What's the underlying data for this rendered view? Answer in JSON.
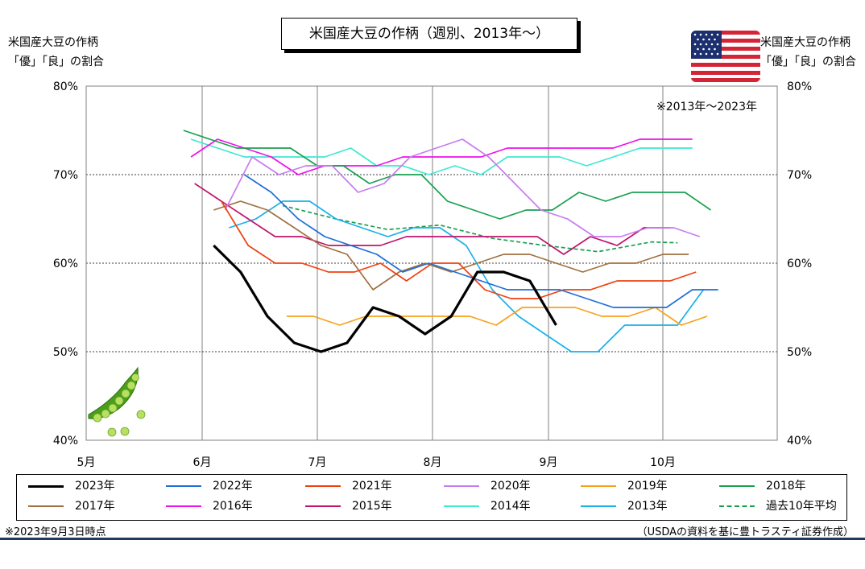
{
  "chart_data": {
    "type": "line",
    "title": "米国産大豆の作柄（週別、2013年～）",
    "ylabel_left": [
      "米国産大豆の作柄",
      "「優」「良」の割合"
    ],
    "ylabel_right": [
      "米国産大豆の作柄",
      "「優」「良」の割合"
    ],
    "y_unit": "%",
    "ylim": [
      40,
      80
    ],
    "y_ticks": [
      "40%",
      "50%",
      "60%",
      "70%",
      "80%"
    ],
    "x_ticks": [
      "5月",
      "6月",
      "7月",
      "8月",
      "9月",
      "10月"
    ],
    "xlim": [
      "5月1日",
      "11月15日"
    ],
    "grid": true,
    "legend_position": "bottom",
    "annotation": "※2013年～2023年",
    "series": [
      {
        "name": "2023年",
        "color": "#000000",
        "width": 3.2,
        "dash": false,
        "x": [
          "6/4",
          "6/11",
          "6/18",
          "6/25",
          "7/2",
          "7/9",
          "7/16",
          "7/23",
          "7/30",
          "8/6",
          "8/13",
          "8/20",
          "8/27",
          "9/3"
        ],
        "values": [
          62,
          59,
          54,
          51,
          50,
          51,
          55,
          54,
          52,
          54,
          59,
          59,
          58,
          53
        ]
      },
      {
        "name": "2022年",
        "color": "#1f6fd6",
        "width": 1.7,
        "dash": false,
        "x": [
          "6/12",
          "6/19",
          "6/26",
          "7/3",
          "7/10",
          "7/17",
          "7/24",
          "7/31",
          "8/7",
          "8/14",
          "8/21",
          "8/28",
          "9/4",
          "9/11",
          "9/18",
          "9/25",
          "10/2",
          "10/9",
          "10/16"
        ],
        "values": [
          70,
          68,
          65,
          63,
          62,
          61,
          59,
          60,
          59,
          58,
          57,
          57,
          57,
          56,
          55,
          55,
          55,
          57,
          57
        ]
      },
      {
        "name": "2021年",
        "color": "#f04010",
        "width": 1.7,
        "dash": false,
        "x": [
          "6/6",
          "6/13",
          "6/20",
          "6/27",
          "7/4",
          "7/11",
          "7/18",
          "7/25",
          "8/1",
          "8/8",
          "8/15",
          "8/22",
          "8/29",
          "9/5",
          "9/12",
          "9/19",
          "9/26",
          "10/3",
          "10/10"
        ],
        "values": [
          67,
          62,
          60,
          60,
          59,
          59,
          60,
          58,
          60,
          60,
          57,
          56,
          56,
          57,
          57,
          58,
          58,
          58,
          59
        ]
      },
      {
        "name": "2020年",
        "color": "#c77cf0",
        "width": 1.7,
        "dash": false,
        "x": [
          "6/7",
          "6/14",
          "6/21",
          "6/28",
          "7/5",
          "7/12",
          "7/19",
          "7/26",
          "8/2",
          "8/9",
          "8/16",
          "8/23",
          "8/30",
          "9/6",
          "9/13",
          "9/20",
          "9/27",
          "10/4",
          "10/11"
        ],
        "values": [
          66,
          72,
          70,
          71,
          71,
          68,
          69,
          72,
          73,
          74,
          72,
          69,
          66,
          65,
          63,
          63,
          64,
          64,
          63
        ]
      },
      {
        "name": "2019年",
        "color": "#f7a21b",
        "width": 1.7,
        "dash": false,
        "x": [
          "6/23",
          "6/30",
          "7/7",
          "7/14",
          "7/21",
          "7/28",
          "8/4",
          "8/11",
          "8/18",
          "8/25",
          "9/1",
          "9/8",
          "9/15",
          "9/22",
          "9/29",
          "10/6",
          "10/13"
        ],
        "values": [
          54,
          54,
          53,
          54,
          54,
          54,
          54,
          54,
          53,
          55,
          55,
          55,
          54,
          54,
          55,
          53,
          54
        ]
      },
      {
        "name": "2018年",
        "color": "#1aa050",
        "width": 1.7,
        "dash": false,
        "x": [
          "5/27",
          "6/3",
          "6/10",
          "6/17",
          "6/24",
          "7/1",
          "7/8",
          "7/15",
          "7/22",
          "7/29",
          "8/5",
          "8/12",
          "8/19",
          "8/26",
          "9/2",
          "9/9",
          "9/16",
          "9/23",
          "9/30",
          "10/7",
          "10/14"
        ],
        "values": [
          75,
          74,
          73,
          73,
          73,
          71,
          71,
          69,
          70,
          70,
          67,
          66,
          65,
          66,
          66,
          68,
          67,
          68,
          68,
          68,
          66
        ]
      },
      {
        "name": "2017年",
        "color": "#a07040",
        "width": 1.7,
        "dash": false,
        "x": [
          "6/4",
          "6/11",
          "6/18",
          "6/25",
          "7/2",
          "7/9",
          "7/16",
          "7/23",
          "7/30",
          "8/6",
          "8/13",
          "8/20",
          "8/27",
          "9/3",
          "9/10",
          "9/17",
          "9/24",
          "10/1",
          "10/8"
        ],
        "values": [
          66,
          67,
          66,
          64,
          62,
          61,
          57,
          59,
          60,
          59,
          60,
          61,
          61,
          60,
          59,
          60,
          60,
          61,
          61
        ]
      },
      {
        "name": "2016年",
        "color": "#ee10ee",
        "width": 1.7,
        "dash": false,
        "x": [
          "5/29",
          "6/5",
          "6/12",
          "6/19",
          "6/26",
          "7/3",
          "7/10",
          "7/17",
          "7/24",
          "7/31",
          "8/7",
          "8/14",
          "8/21",
          "8/28",
          "9/4",
          "9/11",
          "9/18",
          "9/25",
          "10/2",
          "10/9"
        ],
        "values": [
          72,
          74,
          73,
          72,
          70,
          71,
          71,
          71,
          72,
          72,
          72,
          72,
          73,
          73,
          73,
          73,
          73,
          74,
          74,
          74
        ]
      },
      {
        "name": "2015年",
        "color": "#c0146e",
        "width": 1.7,
        "dash": false,
        "x": [
          "5/30",
          "6/6",
          "6/13",
          "6/20",
          "6/27",
          "7/4",
          "7/11",
          "7/18",
          "7/25",
          "8/1",
          "8/8",
          "8/15",
          "8/22",
          "8/29",
          "9/5",
          "9/12",
          "9/19",
          "9/26",
          "10/3"
        ],
        "values": [
          69,
          67,
          65,
          63,
          63,
          62,
          62,
          62,
          63,
          63,
          63,
          63,
          63,
          63,
          61,
          63,
          62,
          64,
          64
        ]
      },
      {
        "name": "2014年",
        "color": "#40e8d0",
        "width": 1.7,
        "dash": false,
        "x": [
          "5/29",
          "6/5",
          "6/12",
          "6/19",
          "6/26",
          "7/3",
          "7/10",
          "7/17",
          "7/24",
          "7/31",
          "8/7",
          "8/14",
          "8/21",
          "8/28",
          "9/4",
          "9/11",
          "9/18",
          "9/25",
          "10/2",
          "10/9"
        ],
        "values": [
          74,
          73,
          72,
          72,
          72,
          72,
          73,
          71,
          71,
          70,
          71,
          70,
          72,
          72,
          72,
          71,
          72,
          73,
          73,
          73
        ]
      },
      {
        "name": "2013年",
        "color": "#1ab0e8",
        "width": 1.7,
        "dash": false,
        "x": [
          "6/8",
          "6/15",
          "6/22",
          "6/29",
          "7/6",
          "7/13",
          "7/20",
          "7/27",
          "8/3",
          "8/10",
          "8/17",
          "8/24",
          "8/31",
          "9/7",
          "9/14",
          "9/21",
          "9/28",
          "10/5",
          "10/12"
        ],
        "values": [
          64,
          65,
          67,
          67,
          65,
          64,
          63,
          64,
          64,
          62,
          57,
          54,
          52,
          50,
          50,
          53,
          53,
          53,
          57
        ]
      },
      {
        "name": "過去10年平均",
        "color": "#1aa050",
        "width": 1.7,
        "dash": true,
        "x": [
          "6/22",
          "7/6",
          "7/20",
          "8/3",
          "8/17",
          "8/31",
          "9/14",
          "9/28",
          "10/5"
        ],
        "values": [
          66.5,
          65,
          63.8,
          64.3,
          62.8,
          62.0,
          61.3,
          62.4,
          62.3
        ]
      }
    ]
  },
  "footnote_left": "※2023年9月3日時点",
  "footnote_right": "（USDAの資料を基に豊トラスティ証券作成）",
  "flag_icon": "us-flag-icon",
  "decoration_icon": "green-soybean-pod-icon"
}
